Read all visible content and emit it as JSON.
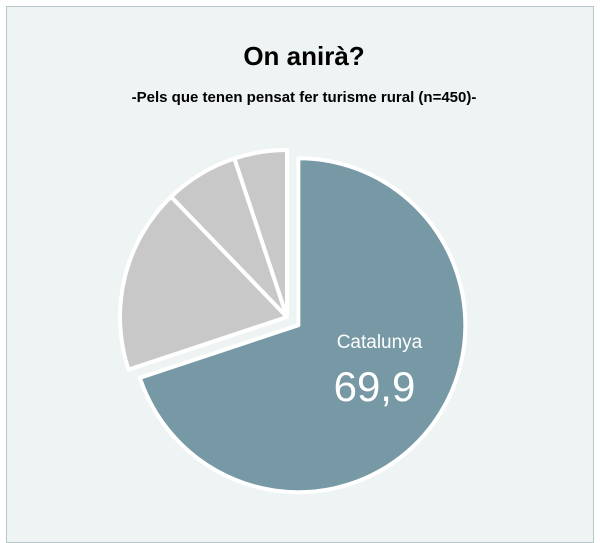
{
  "chart_data": {
    "type": "pie",
    "title": "On anirà?",
    "subtitle": "-Pels que tenen pensat fer turisme rural (n=450)-",
    "categories": [
      "Catalunya",
      null,
      null,
      null
    ],
    "values": [
      69.9,
      17.9,
      7.1,
      5.1
    ],
    "value_labels": [
      "69,9",
      null,
      null,
      null
    ],
    "colors": [
      "#7799a5",
      "#c8c8c8",
      "#c8c8c8",
      "#c8c8c8"
    ],
    "exploded": [
      true,
      false,
      false,
      false
    ]
  }
}
